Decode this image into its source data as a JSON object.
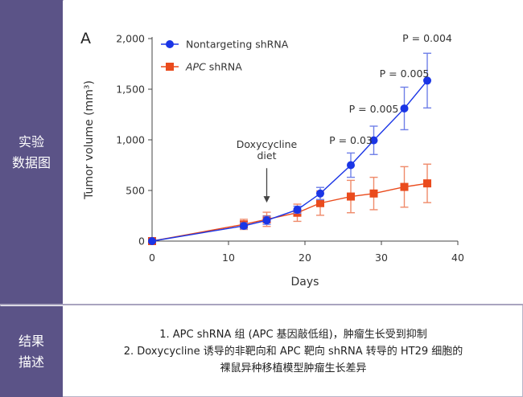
{
  "sections": {
    "top_label": [
      "实验",
      "数据图"
    ],
    "bottom_label": [
      "结果",
      "描述"
    ]
  },
  "description": {
    "line1": "1. APC shRNA 组 (APC 基因敲低组)，肿瘤生长受到抑制",
    "line2": "2. Doxycycline 诱导的非靶向和 APC 靶向 shRNA 转导的 HT29 细胞的",
    "line3": "裸鼠异种移植模型肿瘤生长差异"
  },
  "colors": {
    "sidebar": "#5b5387",
    "nontargeting": "#1a35e6",
    "apc": "#ea4b1d",
    "errorbar_nontargeting": "#6f7fe8",
    "errorbar_apc": "#ef8a6a"
  },
  "chart_data": {
    "type": "line",
    "panel_label": "A",
    "xlabel": "Days",
    "ylabel": "Tumor volume (mm³)",
    "xlim": [
      0,
      40
    ],
    "ylim": [
      0,
      2000
    ],
    "x_ticks": [
      "0",
      "10",
      "20",
      "30",
      "40"
    ],
    "y_ticks": [
      "0",
      "500",
      "1,000",
      "1,500",
      "2,000"
    ],
    "series": [
      {
        "name": "Nontargeting shRNA",
        "marker": "circle",
        "x": [
          0,
          12,
          15,
          19,
          22,
          26,
          29,
          33,
          36
        ],
        "y": [
          0,
          150,
          205,
          310,
          470,
          750,
          995,
          1310,
          1585
        ],
        "err": [
          0,
          30,
          40,
          35,
          60,
          120,
          140,
          210,
          270
        ]
      },
      {
        "name": "APC shRNA",
        "marker": "square",
        "x": [
          0,
          12,
          15,
          19,
          22,
          26,
          29,
          33,
          36
        ],
        "y": [
          0,
          165,
          215,
          280,
          375,
          440,
          470,
          535,
          570
        ],
        "err": [
          0,
          50,
          70,
          85,
          120,
          160,
          160,
          200,
          190
        ]
      }
    ],
    "annotations": [
      {
        "text": "Doxycycline",
        "x": 15,
        "y": 920
      },
      {
        "text": "diet",
        "x": 15,
        "y": 810
      },
      {
        "text": "P = 0.03",
        "x": 26,
        "y": 960
      },
      {
        "text": "P = 0.005",
        "x": 29,
        "y": 1270
      },
      {
        "text": "P = 0.005",
        "x": 33,
        "y": 1620
      },
      {
        "text": "P = 0.004",
        "x": 36,
        "y": 1970
      }
    ],
    "arrow": {
      "x": 15,
      "y_from": 720,
      "y_to": 380
    }
  }
}
